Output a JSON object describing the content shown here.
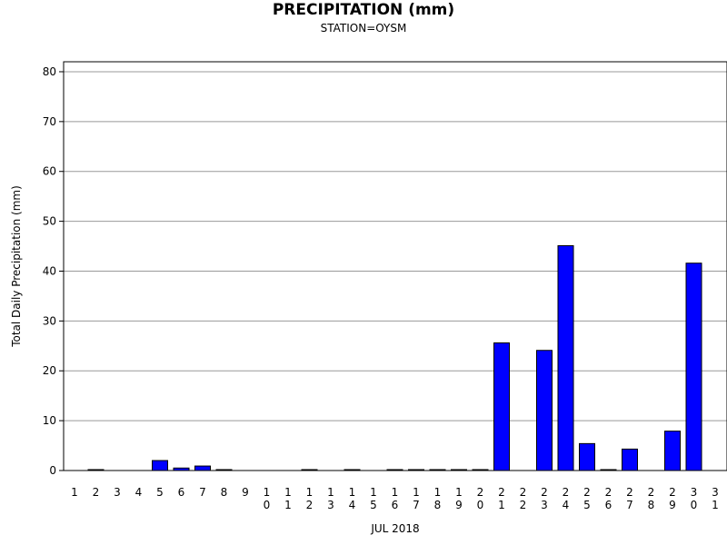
{
  "chart_data": {
    "type": "bar",
    "title": "PRECIPITATION (mm)",
    "subtitle": "STATION=OYSM",
    "xlabel": "JUL 2018",
    "ylabel": "Total Daily Precipitation (mm)",
    "ylim": [
      0,
      82
    ],
    "yticks": [
      0,
      10,
      20,
      30,
      40,
      50,
      60,
      70,
      80
    ],
    "grid": true,
    "bar_color": "#0000ff",
    "categories": [
      "1",
      "2",
      "3",
      "4",
      "5",
      "6",
      "7",
      "8",
      "9",
      "10",
      "11",
      "12",
      "13",
      "14",
      "15",
      "16",
      "17",
      "18",
      "19",
      "20",
      "21",
      "22",
      "23",
      "24",
      "25",
      "26",
      "27",
      "28",
      "29",
      "30",
      "31"
    ],
    "values": [
      null,
      0.1,
      null,
      null,
      2.0,
      0.5,
      0.9,
      0.1,
      null,
      null,
      null,
      0.1,
      null,
      0.1,
      null,
      0.1,
      0.1,
      0.1,
      0.1,
      0.1,
      25.6,
      null,
      24.1,
      45.1,
      5.4,
      0.1,
      4.3,
      null,
      7.9,
      41.6,
      null
    ]
  }
}
